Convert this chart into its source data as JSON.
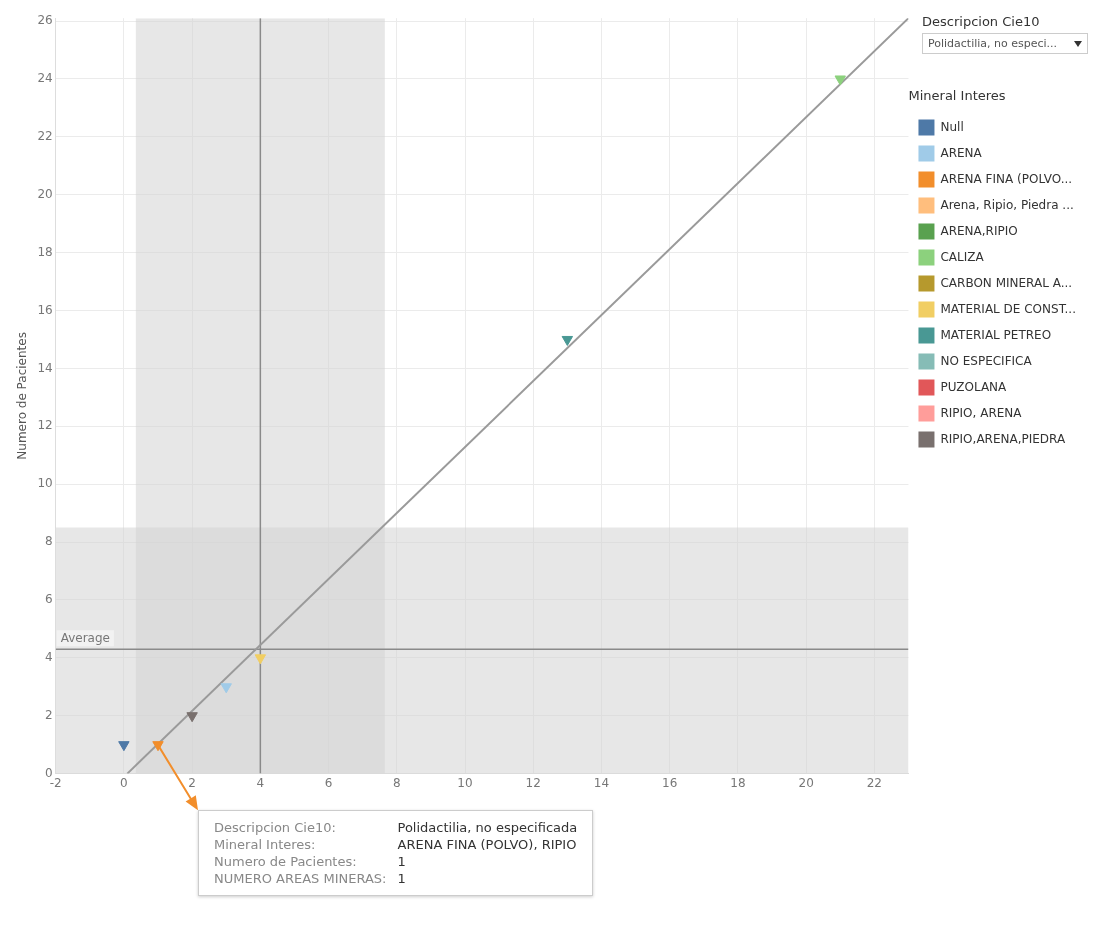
{
  "chart_data": {
    "type": "scatter",
    "ylabel": "Numero de Pacientes",
    "legend_title": "Mineral Interes",
    "legend": "right",
    "grid": true,
    "marker": "triangle",
    "xlim": [
      -2,
      23
    ],
    "xticks": [
      -2,
      0,
      2,
      4,
      6,
      8,
      10,
      12,
      14,
      16,
      18,
      20,
      22
    ],
    "ylim": [
      0,
      26.1
    ],
    "yticks": [
      0,
      2,
      4,
      6,
      8,
      10,
      12,
      14,
      16,
      18,
      20,
      22,
      24,
      26
    ],
    "series": [
      {
        "name": "Null",
        "color": "#4e79a7",
        "x": [
          0
        ],
        "values": [
          1
        ]
      },
      {
        "name": "ARENA",
        "color": "#a0cbe8",
        "x": [
          3
        ],
        "values": [
          3
        ]
      },
      {
        "name": "ARENA FINA (POLVO...",
        "color": "#f28e2b",
        "x": [
          1
        ],
        "values": [
          1
        ]
      },
      {
        "name": "Arena, Ripio, Piedra ...",
        "color": "#ffbe7d"
      },
      {
        "name": "ARENA,RIPIO",
        "color": "#59a14f"
      },
      {
        "name": "CALIZA",
        "color": "#8cd17d",
        "x": [
          21
        ],
        "values": [
          24
        ]
      },
      {
        "name": "CARBON MINERAL A...",
        "color": "#b6992d"
      },
      {
        "name": "MATERIAL DE CONST...",
        "color": "#f1ce63",
        "x": [
          4
        ],
        "values": [
          4
        ]
      },
      {
        "name": "MATERIAL PETREO",
        "color": "#499894",
        "x": [
          13
        ],
        "values": [
          15
        ]
      },
      {
        "name": "NO ESPECIFICA",
        "color": "#86bcb6"
      },
      {
        "name": "PUZOLANA",
        "color": "#e15759"
      },
      {
        "name": "RIPIO, ARENA",
        "color": "#ff9d9a"
      },
      {
        "name": "RIPIO,ARENA,PIEDRA",
        "color": "#79706e",
        "x": [
          2
        ],
        "values": [
          2
        ]
      },
      {
        "type": "line",
        "color": "#9a9a9a",
        "marker": "none",
        "x": [
          0.1,
          23
        ],
        "values": [
          0,
          26.1
        ]
      }
    ],
    "ref_lines": [
      {
        "axis": "y",
        "value": 4.3,
        "label": "Average",
        "color": "#8a8a8a"
      },
      {
        "axis": "x",
        "value": 4,
        "label": null,
        "color": "#8a8a8a"
      }
    ],
    "bands": [
      {
        "axis": "x",
        "from": 0.35,
        "to": 7.65,
        "label": null,
        "color": "#d4d4d4"
      },
      {
        "axis": "y",
        "from": 0,
        "to": 8.5,
        "label": null,
        "color": "#d4d4d4"
      }
    ],
    "annotations": [
      "Descripcion Cie10",
      "Polidactilia, no especi...",
      "Descripcion Cie10:",
      "Polidactilia, no especificada",
      "Mineral Interes:",
      "ARENA FINA (POLVO), RIPIO",
      "Numero de Pacientes:",
      "1",
      "NUMERO AREAS MINERAS:",
      "1"
    ]
  }
}
